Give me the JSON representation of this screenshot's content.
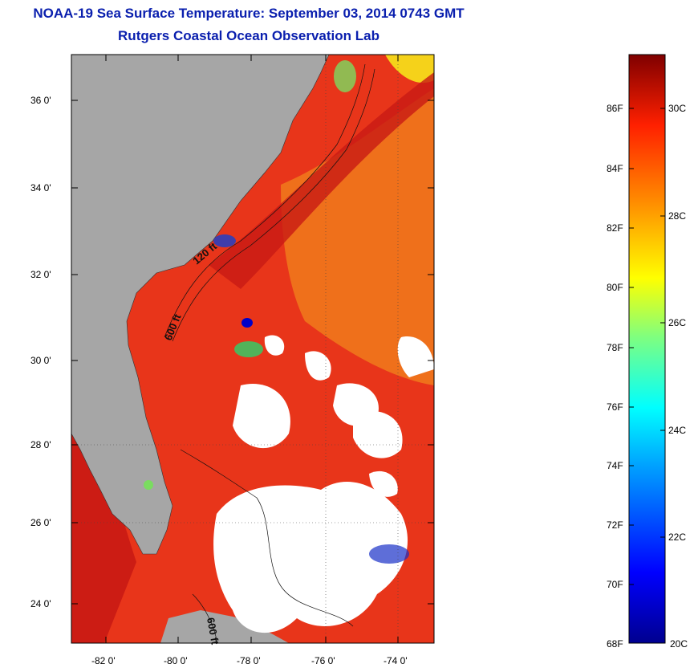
{
  "header": {
    "title": "NOAA-19 Sea Surface Temperature:  September 03, 2014 0743 GMT",
    "subtitle": "Rutgers Coastal Ocean Observation Lab"
  },
  "map": {
    "lat_ticks": [
      "36 0'",
      "34 0'",
      "32 0'",
      "30 0'",
      "28 0'",
      "26 0'",
      "24 0'"
    ],
    "lon_ticks": [
      "-82 0'",
      "-80 0'",
      "-78 0'",
      "-76 0'",
      "-74 0'"
    ],
    "contour_labels": [
      "120 ft",
      "600 ft",
      "600 ft"
    ],
    "colors": {
      "land": "#a6a6a6",
      "cloud": "#ffffff",
      "warm_sst": "#e8351a",
      "hot_sst": "#cc1c14",
      "orange_sst": "#f07a1c"
    }
  },
  "colorbar": {
    "fahrenheit_labels": [
      "86F",
      "84F",
      "82F",
      "80F",
      "78F",
      "76F",
      "74F",
      "72F",
      "70F",
      "68F"
    ],
    "celsius_labels": [
      "30C",
      "28C",
      "26C",
      "24C",
      "22C",
      "20C"
    ],
    "range_f": [
      68,
      88
    ],
    "range_c": [
      20,
      31
    ]
  }
}
